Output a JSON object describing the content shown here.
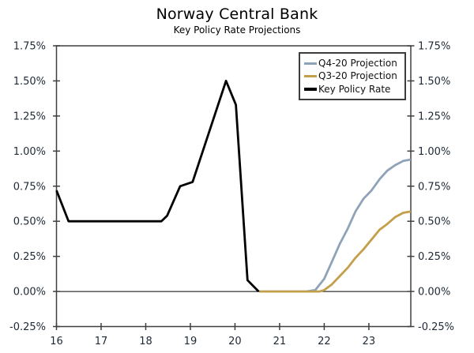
{
  "header": {
    "title": "Norway Central Bank",
    "subtitle": "Key Policy Rate Projections"
  },
  "colors": {
    "axis": "#3f3f3f",
    "tick_label": "#1e2936",
    "zero_line": "#000000",
    "legend_border": "#3d3d3d",
    "background": "#ffffff"
  },
  "chart_data": {
    "type": "line",
    "title": "Norway Central Bank",
    "subtitle": "Key Policy Rate Projections",
    "xlabel": "",
    "ylabel": "",
    "xlim": [
      16,
      23.94
    ],
    "ylim": [
      -0.25,
      1.75
    ],
    "grid": false,
    "zero_line": true,
    "legend_position": "top-right-inside",
    "x_ticks": [
      {
        "v": 16,
        "label": "16"
      },
      {
        "v": 17,
        "label": "17"
      },
      {
        "v": 18,
        "label": "18"
      },
      {
        "v": 19,
        "label": "19"
      },
      {
        "v": 20,
        "label": "20"
      },
      {
        "v": 21,
        "label": "21"
      },
      {
        "v": 22,
        "label": "22"
      },
      {
        "v": 23,
        "label": "23"
      }
    ],
    "y_ticks": [
      {
        "v": 1.75,
        "label": "1.75%"
      },
      {
        "v": 1.5,
        "label": "1.50%"
      },
      {
        "v": 1.25,
        "label": "1.25%"
      },
      {
        "v": 1.0,
        "label": "1.00%"
      },
      {
        "v": 0.75,
        "label": "0.75%"
      },
      {
        "v": 0.5,
        "label": "0.50%"
      },
      {
        "v": 0.25,
        "label": "0.25%"
      },
      {
        "v": 0.0,
        "label": "0.00%"
      },
      {
        "v": -0.25,
        "label": "-0.25%"
      }
    ],
    "series": [
      {
        "name": "Q4-20 Projection",
        "color": "#8FA3B8",
        "width": 2.8,
        "points": [
          [
            20.55,
            0.0
          ],
          [
            21.0,
            0.0
          ],
          [
            21.4,
            0.0
          ],
          [
            21.6,
            0.0
          ],
          [
            21.8,
            0.01
          ],
          [
            22.0,
            0.09
          ],
          [
            22.17,
            0.21
          ],
          [
            22.35,
            0.34
          ],
          [
            22.53,
            0.45
          ],
          [
            22.7,
            0.57
          ],
          [
            22.88,
            0.66
          ],
          [
            23.06,
            0.72
          ],
          [
            23.24,
            0.8
          ],
          [
            23.41,
            0.86
          ],
          [
            23.59,
            0.9
          ],
          [
            23.77,
            0.93
          ],
          [
            23.94,
            0.94
          ]
        ]
      },
      {
        "name": "Q3-20 Projection",
        "color": "#C49F4B",
        "width": 2.8,
        "points": [
          [
            20.55,
            0.0
          ],
          [
            21.0,
            0.0
          ],
          [
            21.6,
            0.0
          ],
          [
            21.9,
            0.0
          ],
          [
            22.0,
            0.01
          ],
          [
            22.17,
            0.05
          ],
          [
            22.35,
            0.11
          ],
          [
            22.53,
            0.17
          ],
          [
            22.7,
            0.24
          ],
          [
            22.88,
            0.3
          ],
          [
            23.06,
            0.37
          ],
          [
            23.24,
            0.44
          ],
          [
            23.41,
            0.48
          ],
          [
            23.59,
            0.53
          ],
          [
            23.77,
            0.56
          ],
          [
            23.94,
            0.57
          ]
        ]
      },
      {
        "name": "Key Policy Rate",
        "color": "#000000",
        "width": 2.8,
        "points": [
          [
            16.0,
            0.72
          ],
          [
            16.27,
            0.5
          ],
          [
            18.35,
            0.5
          ],
          [
            18.48,
            0.54
          ],
          [
            18.77,
            0.75
          ],
          [
            19.05,
            0.78
          ],
          [
            19.8,
            1.5
          ],
          [
            20.02,
            1.33
          ],
          [
            20.28,
            0.08
          ],
          [
            20.53,
            0.0
          ]
        ]
      }
    ]
  }
}
